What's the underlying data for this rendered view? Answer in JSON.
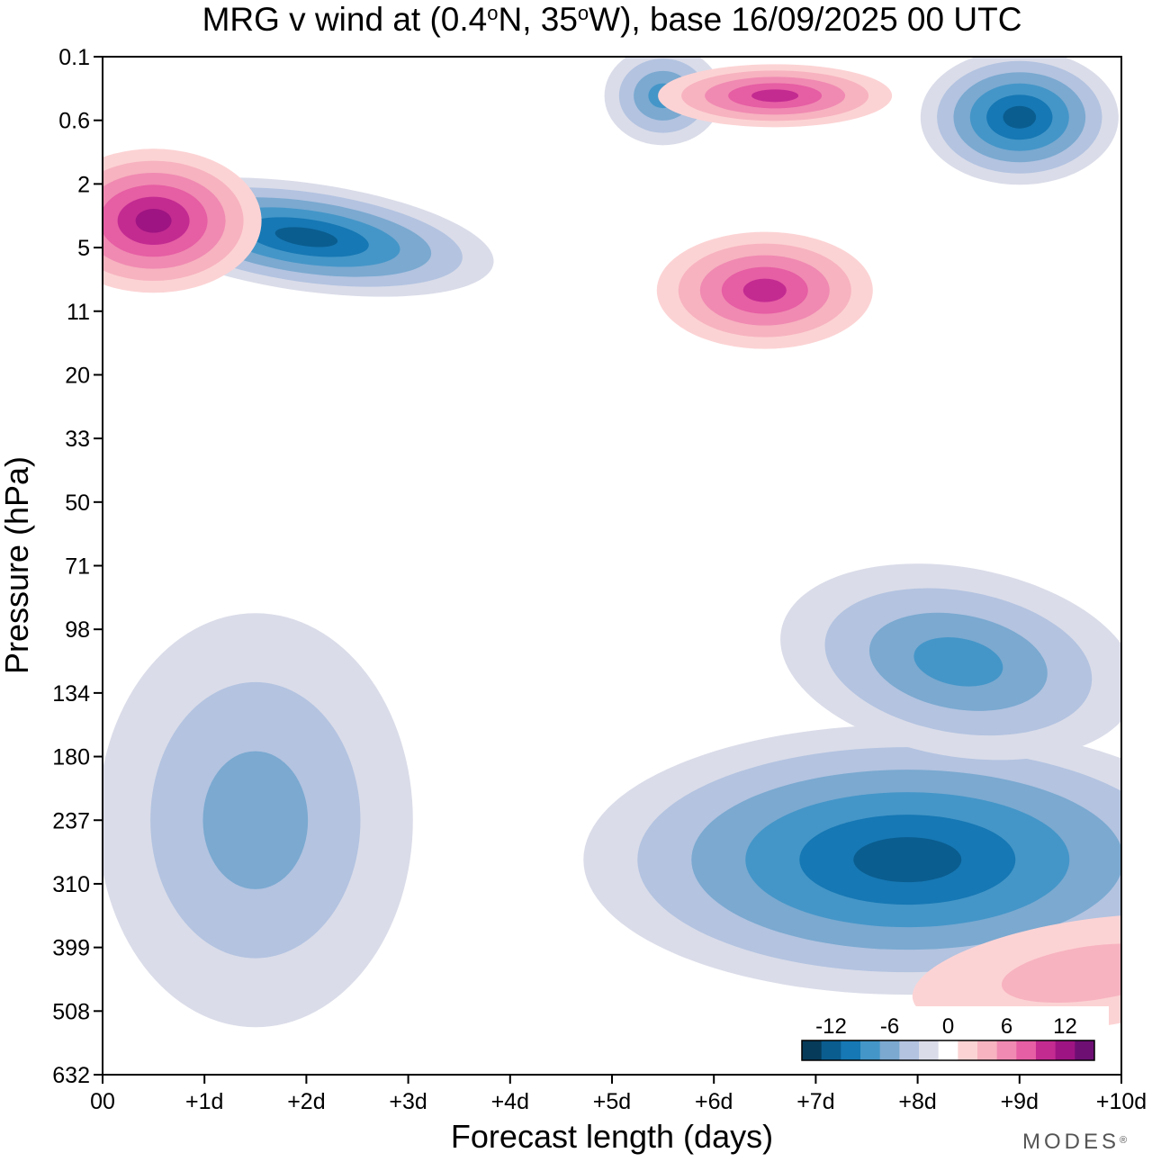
{
  "chart_data": {
    "type": "heatmap",
    "title": {
      "text": "MRG v wind at (0.4°N, 35°W),  base 16/09/2025  00 UTC",
      "parts": [
        "MRG v wind at (0.4",
        "o",
        "N, 35",
        "o",
        "W),  base 16/09/2025  00 UTC"
      ]
    },
    "xlabel": "Forecast length (days)",
    "ylabel": "Pressure (hPa)",
    "x_ticks": [
      "00",
      "+1d",
      "+2d",
      "+3d",
      "+4d",
      "+5d",
      "+6d",
      "+7d",
      "+8d",
      "+9d",
      "+10d"
    ],
    "xlim": [
      0,
      10
    ],
    "y_ticks": [
      "0.1",
      "0.6",
      "2",
      "5",
      "11",
      "20",
      "33",
      "50",
      "71",
      "98",
      "134",
      "180",
      "237",
      "310",
      "399",
      "508",
      "632"
    ],
    "y_scale": "log-pressure (top 0.1 hPa, bottom 632 hPa)",
    "contour_levels": [
      -15,
      -13,
      -11,
      -9,
      -7,
      -5,
      -3,
      -1,
      1,
      3,
      5,
      7,
      9,
      11,
      13,
      15
    ],
    "colorbar": {
      "labels": [
        {
          "text": "-12",
          "value": -12
        },
        {
          "text": "-6",
          "value": -6
        },
        {
          "text": "0",
          "value": 0
        },
        {
          "text": "6",
          "value": 6
        },
        {
          "text": "12",
          "value": 12
        }
      ],
      "colors": [
        "#063b5a",
        "#0a5d8f",
        "#1678b4",
        "#4496c8",
        "#7ba9d0",
        "#b3c3e0",
        "#dadce9",
        "#ffffff",
        "#fcd3d4",
        "#f7b3c0",
        "#f08ab2",
        "#e65ea4",
        "#c32b91",
        "#9e1482",
        "#6e0f74"
      ],
      "location": "bottom-right"
    },
    "features": [
      {
        "label": "neg-lower-left",
        "x": 1.5,
        "p": 237,
        "sign": -1,
        "peak": 7
      },
      {
        "label": "neg-lower-centre",
        "x": 7.9,
        "p": 280,
        "sign": -1,
        "peak": 12
      },
      {
        "label": "neg-lower-right-upper",
        "x": 8.4,
        "p": 115,
        "sign": -1,
        "peak": 9
      },
      {
        "label": "neg-strat-day2",
        "x": 2.0,
        "p": 4.3,
        "sign": -1,
        "peak": 13
      },
      {
        "label": "neg-strat-day9",
        "x": 9.0,
        "p": 0.55,
        "sign": -1,
        "peak": 12
      },
      {
        "label": "neg-strat-day5.5",
        "x": 5.5,
        "p": 0.3,
        "sign": -1,
        "peak": 9
      },
      {
        "label": "pos-strat-day0.5",
        "x": 0.5,
        "p": 3.4,
        "sign": 1,
        "peak": 13
      },
      {
        "label": "pos-strat-day6.5",
        "x": 6.5,
        "p": 8.5,
        "sign": 1,
        "peak": 11
      },
      {
        "label": "pos-strat-day6.6-top",
        "x": 6.6,
        "p": 0.3,
        "sign": 1,
        "peak": 11
      },
      {
        "label": "pos-lower-right",
        "x": 9.7,
        "p": 440,
        "sign": 1,
        "peak": 5
      }
    ]
  },
  "branding": {
    "logo_text": "MODES",
    "logo_mark": "®"
  }
}
